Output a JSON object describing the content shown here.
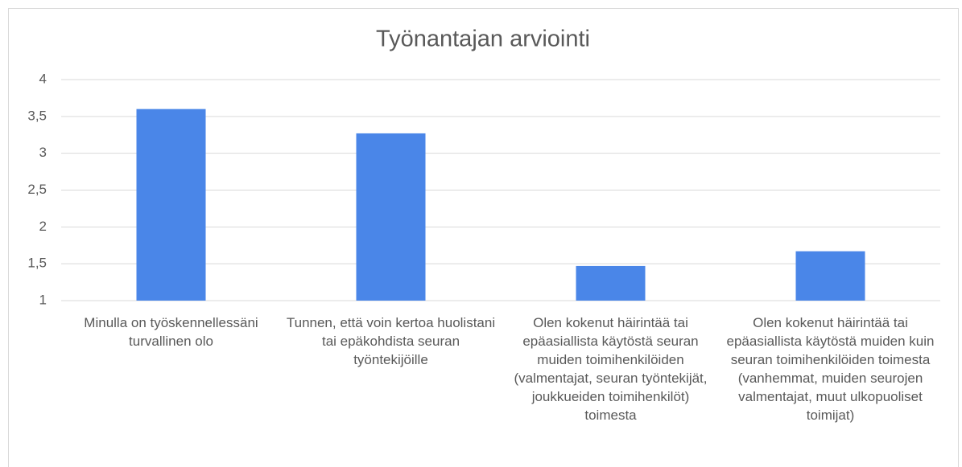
{
  "chart_data": {
    "type": "bar",
    "title": "Työnantajan arviointi",
    "categories": [
      "Minulla on työskennellessäni turvallinen olo",
      "Tunnen, että voin kertoa huolistani tai epäkohdista seuran työntekijöille",
      "Olen kokenut häirintää tai epäasiallista käytöstä seuran muiden toimihenkilöiden (valmentajat, seuran työntekijät, joukkueiden toimihenkilöt) toimesta",
      "Olen kokenut häirintää tai epäasiallista käytöstä muiden kuin seuran toimihenkilöiden toimesta (vanhemmat, muiden seurojen valmentajat, muut ulkopuoliset toimijat)"
    ],
    "values": [
      3.6,
      3.27,
      1.47,
      1.67
    ],
    "color": "#4a86e8",
    "ylim": [
      1,
      4
    ],
    "yticks": [
      1,
      {
        "value": 1.5,
        "label": "1,5"
      },
      2,
      {
        "value": 2.5,
        "label": "2,5"
      },
      3,
      {
        "value": 3.5,
        "label": "3,5"
      },
      4
    ],
    "grid": true
  }
}
